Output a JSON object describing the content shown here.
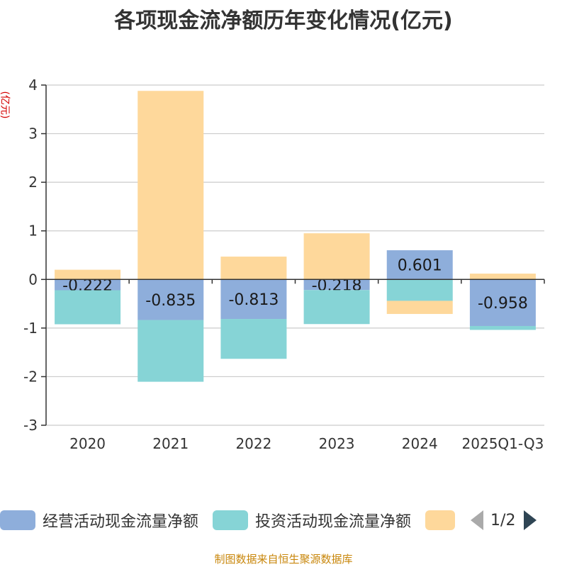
{
  "title": "各项现金流净额历年变化情况(亿元)",
  "unit_label": "(亿元)",
  "footer": "制图数据来自恒生聚源数据库",
  "pager": "1/2",
  "colors": {
    "operating": "#8eaedb",
    "investing": "#86d4d6",
    "financing": "#fed89b",
    "axis": "#333333",
    "grid": "#cccccc"
  },
  "chart_data": {
    "type": "bar",
    "stacked": true,
    "title": "各项现金流净额历年变化情况(亿元)",
    "ylabel": "(亿元)",
    "ylim": [
      -3,
      4
    ],
    "yticks": [
      4,
      3,
      2,
      1,
      0,
      -1,
      -2,
      -3
    ],
    "categories": [
      "2020",
      "2021",
      "2022",
      "2023",
      "2024",
      "2025Q1-Q3"
    ],
    "series": [
      {
        "name": "经营活动现金流量净额",
        "color": "#8eaedb",
        "values": [
          -0.222,
          -0.835,
          -0.813,
          -0.218,
          0.601,
          -0.958
        ],
        "labels": [
          "-0.222",
          "-0.835",
          "-0.813",
          "-0.218",
          "0.601",
          "-0.958"
        ]
      },
      {
        "name": "投资活动现金流量净额",
        "color": "#86d4d6",
        "values": [
          -0.7,
          -1.27,
          -0.82,
          -0.7,
          -0.44,
          -0.08
        ]
      },
      {
        "name": "",
        "color": "#fed89b",
        "values": [
          0.2,
          3.88,
          0.47,
          0.95,
          -0.27,
          0.12
        ]
      }
    ],
    "legend": [
      "经营活动现金流量净额",
      "投资活动现金流量净额",
      ""
    ]
  }
}
